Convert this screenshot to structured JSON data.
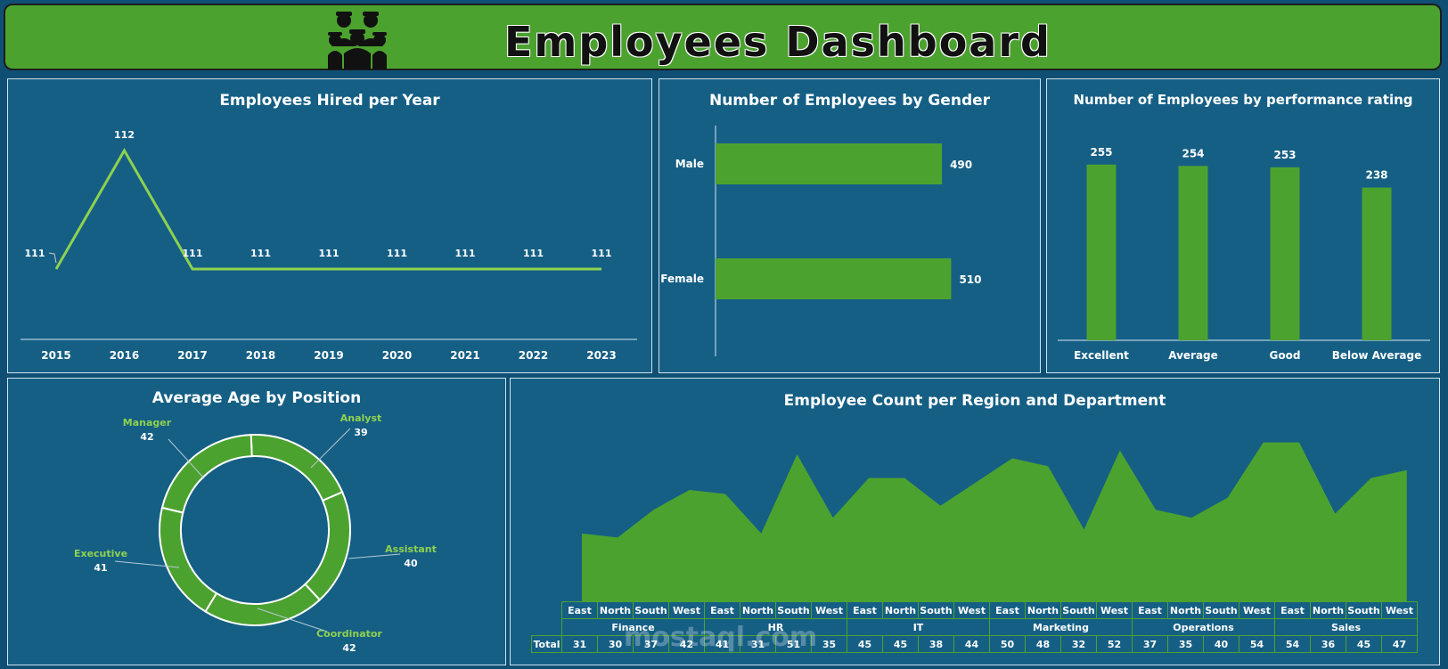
{
  "header": {
    "title": "Employees Dashboard",
    "icon": "group-of-people-icon"
  },
  "colors": {
    "background": "#0f4f74",
    "panel": "#155f85",
    "accent": "#4ca22f",
    "line": "#8fd14f"
  },
  "watermark": "mostaql.com",
  "charts": {
    "hired": {
      "title": "Employees Hired per Year",
      "chart_data": {
        "type": "line",
        "x": [
          "2015",
          "2016",
          "2017",
          "2018",
          "2019",
          "2020",
          "2021",
          "2022",
          "2023"
        ],
        "values": [
          111,
          112,
          111,
          111,
          111,
          111,
          111,
          111,
          111
        ],
        "labels": [
          "111",
          "112",
          "111",
          "111",
          "111",
          "111",
          "111",
          "111",
          "111"
        ]
      }
    },
    "gender": {
      "title": "Number of Employees by Gender",
      "chart_data": {
        "type": "bar",
        "orientation": "horizontal",
        "categories": [
          "Male",
          "Female"
        ],
        "values": [
          490,
          510
        ]
      }
    },
    "performance": {
      "title": "Number of Employees by performance rating",
      "chart_data": {
        "type": "bar",
        "categories": [
          "Excellent",
          "Average",
          "Good",
          "Below Average"
        ],
        "values": [
          255,
          254,
          253,
          238
        ]
      }
    },
    "age": {
      "title": "Average Age by Position",
      "chart_data": {
        "type": "pie",
        "style": "doughnut",
        "categories": [
          "Analyst",
          "Assistant",
          "Coordinator",
          "Executive",
          "Manager"
        ],
        "values": [
          39,
          40,
          42,
          41,
          42
        ]
      }
    },
    "region": {
      "title": "Employee Count per Region and Department",
      "chart_data": {
        "type": "area",
        "departments": [
          "Finance",
          "HR",
          "IT",
          "Marketing",
          "Operations",
          "Sales"
        ],
        "regions": [
          "East",
          "North",
          "South",
          "West"
        ],
        "total_label": "Total",
        "values": [
          31,
          30,
          37,
          42,
          41,
          31,
          51,
          35,
          45,
          45,
          38,
          44,
          50,
          48,
          32,
          52,
          37,
          35,
          40,
          54,
          54,
          36,
          45,
          47
        ]
      }
    }
  }
}
